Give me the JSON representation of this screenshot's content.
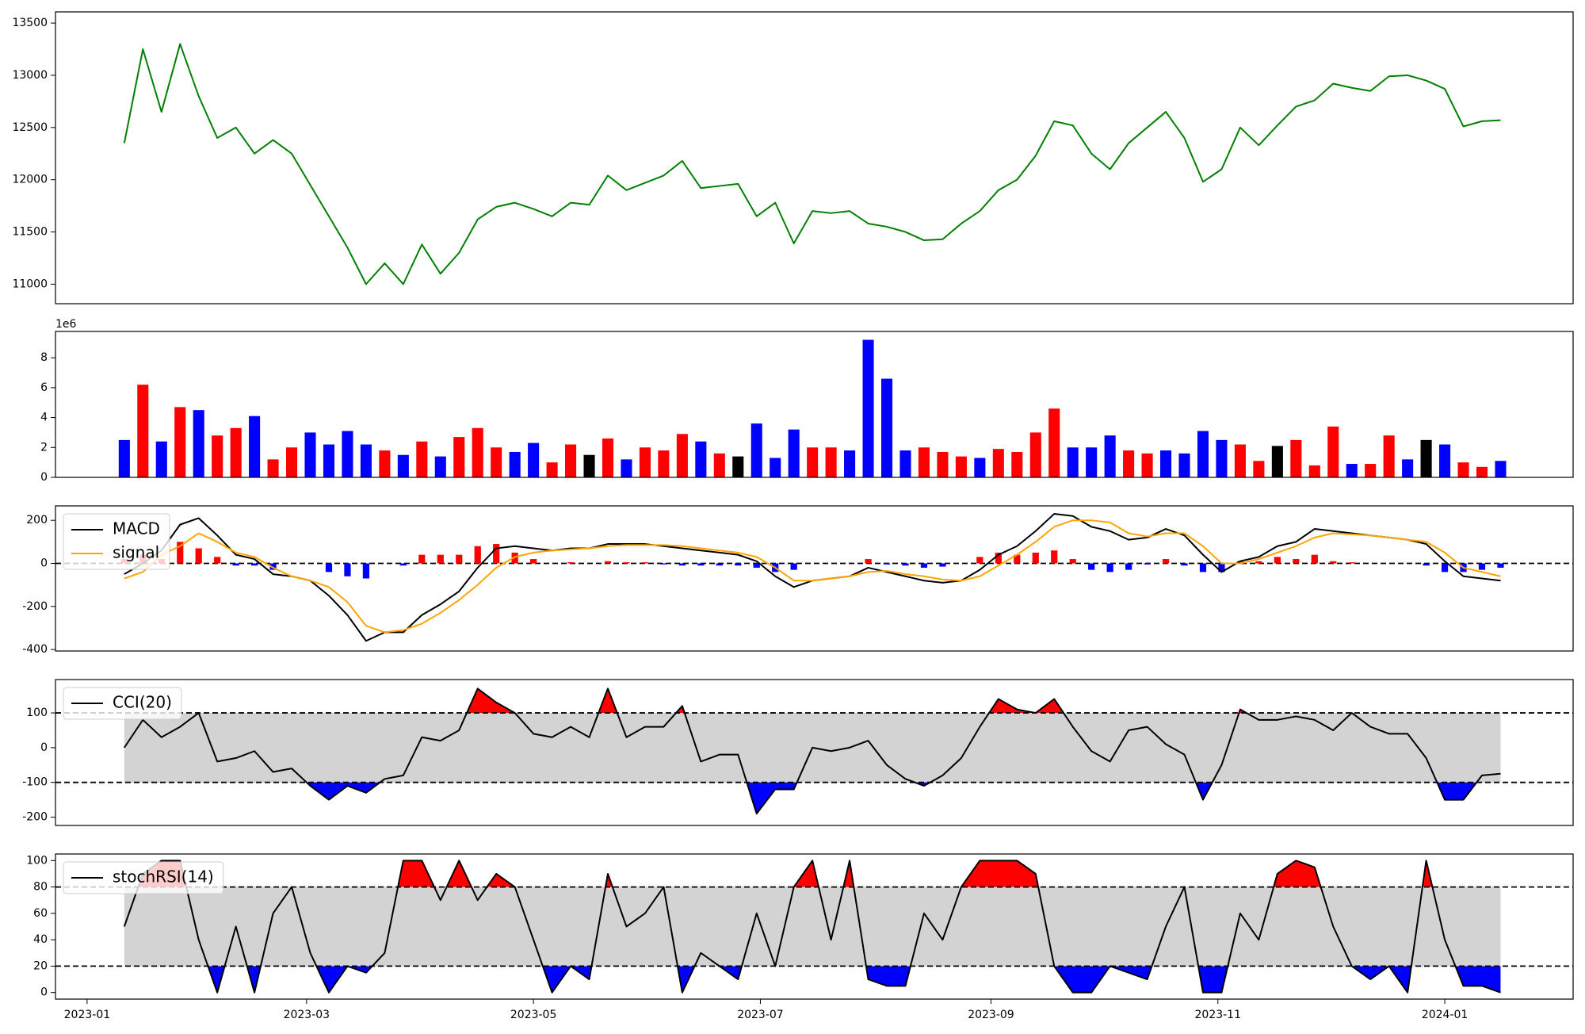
{
  "chart_data": [
    {
      "type": "line",
      "x": [
        19368,
        19373,
        19378,
        19383,
        19388,
        19393,
        19398,
        19403,
        19408,
        19413,
        19418,
        19423,
        19428,
        19433,
        19438,
        19443,
        19448,
        19453,
        19458,
        19463,
        19468,
        19473,
        19478,
        19483,
        19488,
        19493,
        19498,
        19503,
        19508,
        19513,
        19518,
        19523,
        19528,
        19533,
        19538,
        19543,
        19548,
        19553,
        19558,
        19563,
        19568,
        19573,
        19578,
        19583,
        19588,
        19593,
        19598,
        19603,
        19608,
        19613,
        19618,
        19623,
        19628,
        19633,
        19638,
        19643,
        19648,
        19653,
        19658,
        19663,
        19668,
        19673,
        19678,
        19683,
        19688,
        19693,
        19698,
        19703,
        19708,
        19713,
        19718,
        19723,
        19728,
        19733,
        19738
      ],
      "series": [
        {
          "color": "green",
          "values": [
            12350,
            13250,
            12650,
            13300,
            12800,
            12400,
            12500,
            12250,
            12380,
            12250,
            11950,
            11650,
            11350,
            11000,
            11200,
            11000,
            11380,
            11100,
            11300,
            11620,
            11740,
            11780,
            11720,
            11650,
            11780,
            11760,
            12040,
            11900,
            11970,
            12040,
            12180,
            11920,
            11940,
            11960,
            11650,
            11780,
            11390,
            11700,
            11680,
            11700,
            11580,
            11550,
            11500,
            11420,
            11430,
            11580,
            11700,
            11900,
            12000,
            12230,
            12560,
            12520,
            12250,
            12100,
            12350,
            12500,
            12650,
            12400,
            11980,
            12100,
            12500,
            12330,
            12520,
            12700,
            12760,
            12920,
            12880,
            12850,
            12990,
            13000,
            12950,
            12870,
            12510,
            12560,
            12570
          ]
        }
      ],
      "xlim": [
        19349.5,
        19757.5
      ],
      "ylim": [
        10813,
        13607
      ],
      "yticks": [
        11000,
        11500,
        12000,
        12500,
        13000,
        13500
      ]
    },
    {
      "type": "bar",
      "x": [
        19368,
        19373,
        19378,
        19383,
        19388,
        19393,
        19398,
        19403,
        19408,
        19413,
        19418,
        19423,
        19428,
        19433,
        19438,
        19443,
        19448,
        19453,
        19458,
        19463,
        19468,
        19473,
        19478,
        19483,
        19488,
        19493,
        19498,
        19503,
        19508,
        19513,
        19518,
        19523,
        19528,
        19533,
        19538,
        19543,
        19548,
        19553,
        19558,
        19563,
        19568,
        19573,
        19578,
        19583,
        19588,
        19593,
        19598,
        19603,
        19608,
        19613,
        19618,
        19623,
        19628,
        19633,
        19638,
        19643,
        19648,
        19653,
        19658,
        19663,
        19668,
        19673,
        19678,
        19683,
        19688,
        19693,
        19698,
        19703,
        19708,
        19713,
        19718,
        19723,
        19728,
        19733,
        19738
      ],
      "values": [
        2500000,
        6200000,
        2400000,
        4700000,
        4500000,
        2800000,
        3300000,
        4100000,
        1200000,
        2000000,
        3000000,
        2200000,
        3100000,
        2200000,
        1800000,
        1500000,
        2400000,
        1400000,
        2700000,
        3300000,
        2000000,
        1700000,
        2300000,
        1000000,
        2200000,
        1500000,
        2600000,
        1200000,
        2000000,
        1800000,
        2900000,
        2400000,
        1600000,
        1400000,
        3600000,
        1300000,
        3200000,
        2000000,
        2000000,
        1800000,
        9200000,
        6600000,
        1800000,
        2000000,
        1700000,
        1400000,
        1300000,
        1900000,
        1700000,
        3000000,
        4600000,
        2000000,
        2000000,
        2800000,
        1800000,
        1600000,
        1800000,
        1600000,
        3100000,
        2500000,
        2200000,
        1100000,
        2100000,
        2500000,
        800000,
        3400000,
        900000,
        900000,
        2800000,
        1200000,
        2500000,
        2200000,
        1000000,
        700000,
        1100000
      ],
      "colors": [
        "blue",
        "red",
        "blue",
        "red",
        "blue",
        "red",
        "red",
        "blue",
        "red",
        "red",
        "blue",
        "blue",
        "blue",
        "blue",
        "red",
        "blue",
        "red",
        "blue",
        "red",
        "red",
        "red",
        "blue",
        "blue",
        "red",
        "red",
        "black",
        "red",
        "blue",
        "red",
        "red",
        "red",
        "blue",
        "red",
        "black",
        "blue",
        "blue",
        "blue",
        "red",
        "red",
        "blue",
        "blue",
        "blue",
        "blue",
        "red",
        "red",
        "red",
        "blue",
        "red",
        "red",
        "red",
        "red",
        "blue",
        "blue",
        "blue",
        "red",
        "red",
        "blue",
        "blue",
        "blue",
        "blue",
        "red",
        "red",
        "black",
        "red",
        "red",
        "red",
        "blue",
        "red",
        "red",
        "blue",
        "black",
        "blue",
        "red",
        "red",
        "blue"
      ],
      "xlim": [
        19349.5,
        19757.5
      ],
      "ylim": [
        0,
        9760000
      ],
      "yticks": [
        0,
        {
          "value": 2000000,
          "label": "2"
        },
        {
          "value": 4000000,
          "label": "4"
        },
        {
          "value": 6000000,
          "label": "6"
        },
        {
          "value": 8000000,
          "label": "8"
        }
      ],
      "offset_label": "1e6"
    },
    {
      "type": "macd",
      "x": [
        19368,
        19373,
        19378,
        19383,
        19388,
        19393,
        19398,
        19403,
        19408,
        19413,
        19418,
        19423,
        19428,
        19433,
        19438,
        19443,
        19448,
        19453,
        19458,
        19463,
        19468,
        19473,
        19478,
        19483,
        19488,
        19493,
        19498,
        19503,
        19508,
        19513,
        19518,
        19523,
        19528,
        19533,
        19538,
        19543,
        19548,
        19553,
        19558,
        19563,
        19568,
        19573,
        19578,
        19583,
        19588,
        19593,
        19598,
        19603,
        19608,
        19613,
        19618,
        19623,
        19628,
        19633,
        19638,
        19643,
        19648,
        19653,
        19658,
        19663,
        19668,
        19673,
        19678,
        19683,
        19688,
        19693,
        19698,
        19703,
        19708,
        19713,
        19718,
        19723,
        19728,
        19733,
        19738
      ],
      "series": [
        {
          "name": "MACD",
          "color": "black",
          "values": [
            -50,
            0,
            60,
            180,
            210,
            130,
            40,
            20,
            -50,
            -60,
            -80,
            -150,
            -240,
            -360,
            -320,
            -320,
            -240,
            -190,
            -130,
            -20,
            70,
            80,
            70,
            60,
            70,
            70,
            90,
            90,
            90,
            80,
            70,
            60,
            50,
            40,
            10,
            -60,
            -110,
            -80,
            -70,
            -60,
            -20,
            -40,
            -60,
            -80,
            -90,
            -80,
            -30,
            40,
            80,
            150,
            230,
            220,
            170,
            150,
            110,
            120,
            160,
            130,
            40,
            -40,
            10,
            30,
            80,
            100,
            160,
            150,
            140,
            130,
            120,
            110,
            90,
            10,
            -60,
            -70,
            -80
          ]
        },
        {
          "name": "signal",
          "color": "orange",
          "values": [
            -70,
            -40,
            40,
            80,
            140,
            100,
            50,
            30,
            -20,
            -60,
            -80,
            -110,
            -180,
            -290,
            -320,
            -310,
            -280,
            -230,
            -170,
            -100,
            -20,
            30,
            50,
            60,
            65,
            70,
            80,
            85,
            85,
            85,
            80,
            70,
            60,
            50,
            30,
            -20,
            -80,
            -80,
            -70,
            -60,
            -40,
            -35,
            -50,
            -60,
            -75,
            -80,
            -60,
            -10,
            40,
            100,
            170,
            200,
            200,
            190,
            140,
            125,
            140,
            140,
            80,
            0,
            0,
            20,
            50,
            80,
            120,
            140,
            135,
            130,
            120,
            110,
            100,
            50,
            -20,
            -40,
            -60
          ]
        }
      ],
      "hist": [
        20,
        40,
        20,
        100,
        70,
        30,
        -10,
        -10,
        -30,
        0,
        0,
        -40,
        -60,
        -70,
        0,
        -10,
        40,
        40,
        40,
        80,
        90,
        50,
        20,
        0,
        5,
        0,
        10,
        5,
        5,
        -5,
        -10,
        -10,
        -10,
        -10,
        -20,
        -40,
        -30,
        0,
        0,
        0,
        20,
        -5,
        -10,
        -20,
        -15,
        0,
        30,
        50,
        40,
        50,
        60,
        20,
        -30,
        -40,
        -30,
        -5,
        20,
        -10,
        -40,
        -40,
        10,
        10,
        30,
        20,
        40,
        10,
        5,
        0,
        0,
        0,
        -10,
        -40,
        -40,
        -30,
        -20
      ],
      "hist_colors": {
        "positive": "red",
        "negative": "blue"
      },
      "hlines": [
        0
      ],
      "xlim": [
        19349.5,
        19757.5
      ],
      "ylim": [
        -407,
        267
      ],
      "yticks": [
        -400,
        -200,
        0,
        200
      ],
      "legend": "upper left"
    },
    {
      "type": "oscillator",
      "x": [
        19368,
        19373,
        19378,
        19383,
        19388,
        19393,
        19398,
        19403,
        19408,
        19413,
        19418,
        19423,
        19428,
        19433,
        19438,
        19443,
        19448,
        19453,
        19458,
        19463,
        19468,
        19473,
        19478,
        19483,
        19488,
        19493,
        19498,
        19503,
        19508,
        19513,
        19518,
        19523,
        19528,
        19533,
        19538,
        19543,
        19548,
        19553,
        19558,
        19563,
        19568,
        19573,
        19578,
        19583,
        19588,
        19593,
        19598,
        19603,
        19608,
        19613,
        19618,
        19623,
        19628,
        19633,
        19638,
        19643,
        19648,
        19653,
        19658,
        19663,
        19668,
        19673,
        19678,
        19683,
        19688,
        19693,
        19698,
        19703,
        19708,
        19713,
        19718,
        19723,
        19728,
        19733,
        19738
      ],
      "series": [
        {
          "name": "CCI(20)",
          "color": "black",
          "values": [
            0,
            80,
            30,
            60,
            100,
            -40,
            -30,
            -10,
            -70,
            -60,
            -110,
            -150,
            -110,
            -130,
            -90,
            -80,
            30,
            20,
            50,
            170,
            130,
            100,
            40,
            30,
            60,
            30,
            170,
            30,
            60,
            60,
            120,
            -40,
            -20,
            -20,
            -190,
            -120,
            -120,
            0,
            -10,
            0,
            20,
            -50,
            -90,
            -110,
            -80,
            -30,
            60,
            140,
            110,
            100,
            140,
            60,
            -10,
            -40,
            50,
            60,
            10,
            -20,
            -150,
            -50,
            110,
            80,
            80,
            90,
            80,
            50,
            100,
            60,
            40,
            40,
            -30,
            -150,
            -150,
            -80,
            -75
          ]
        }
      ],
      "band": [
        -100,
        100
      ],
      "band_color": "lightgray",
      "above_color": "red",
      "below_color": "blue",
      "hlines": [
        -100,
        100
      ],
      "xlim": [
        19349.5,
        19757.5
      ],
      "ylim": [
        -224,
        196
      ],
      "yticks": [
        -200,
        -100,
        0,
        100
      ],
      "legend": "upper left"
    },
    {
      "type": "oscillator",
      "x": [
        19368,
        19373,
        19378,
        19383,
        19388,
        19393,
        19398,
        19403,
        19408,
        19413,
        19418,
        19423,
        19428,
        19433,
        19438,
        19443,
        19448,
        19453,
        19458,
        19463,
        19468,
        19473,
        19478,
        19483,
        19488,
        19493,
        19498,
        19503,
        19508,
        19513,
        19518,
        19523,
        19528,
        19533,
        19538,
        19543,
        19548,
        19553,
        19558,
        19563,
        19568,
        19573,
        19578,
        19583,
        19588,
        19593,
        19598,
        19603,
        19608,
        19613,
        19618,
        19623,
        19628,
        19633,
        19638,
        19643,
        19648,
        19653,
        19658,
        19663,
        19668,
        19673,
        19678,
        19683,
        19688,
        19693,
        19698,
        19703,
        19708,
        19713,
        19718,
        19723,
        19728,
        19733,
        19738
      ],
      "series": [
        {
          "name": "stochRSI(14)",
          "color": "black",
          "values": [
            50,
            90,
            100,
            100,
            40,
            0,
            50,
            0,
            60,
            80,
            30,
            0,
            20,
            15,
            30,
            100,
            100,
            70,
            100,
            70,
            90,
            80,
            40,
            0,
            20,
            10,
            90,
            50,
            60,
            80,
            0,
            30,
            20,
            10,
            60,
            20,
            80,
            100,
            40,
            100,
            10,
            5,
            5,
            60,
            40,
            80,
            100,
            100,
            100,
            90,
            20,
            0,
            0,
            20,
            15,
            10,
            50,
            80,
            0,
            0,
            60,
            40,
            90,
            100,
            95,
            50,
            20,
            10,
            20,
            0,
            100,
            40,
            5,
            5,
            0
          ]
        }
      ],
      "band": [
        20,
        80
      ],
      "band_color": "lightgray",
      "above_color": "red",
      "below_color": "blue",
      "hlines": [
        20,
        80
      ],
      "xlim": [
        19349.5,
        19757.5
      ],
      "ylim": [
        -5,
        105
      ],
      "yticks": [
        0,
        20,
        40,
        60,
        80,
        100
      ],
      "legend": "upper left",
      "xticks": [
        {
          "value": 19358,
          "label": "2023-01"
        },
        {
          "value": 19417,
          "label": "2023-03"
        },
        {
          "value": 19478,
          "label": "2023-05"
        },
        {
          "value": 19539,
          "label": "2023-07"
        },
        {
          "value": 19601,
          "label": "2023-09"
        },
        {
          "value": 19662,
          "label": "2023-11"
        },
        {
          "value": 19723,
          "label": "2024-01"
        }
      ]
    }
  ]
}
